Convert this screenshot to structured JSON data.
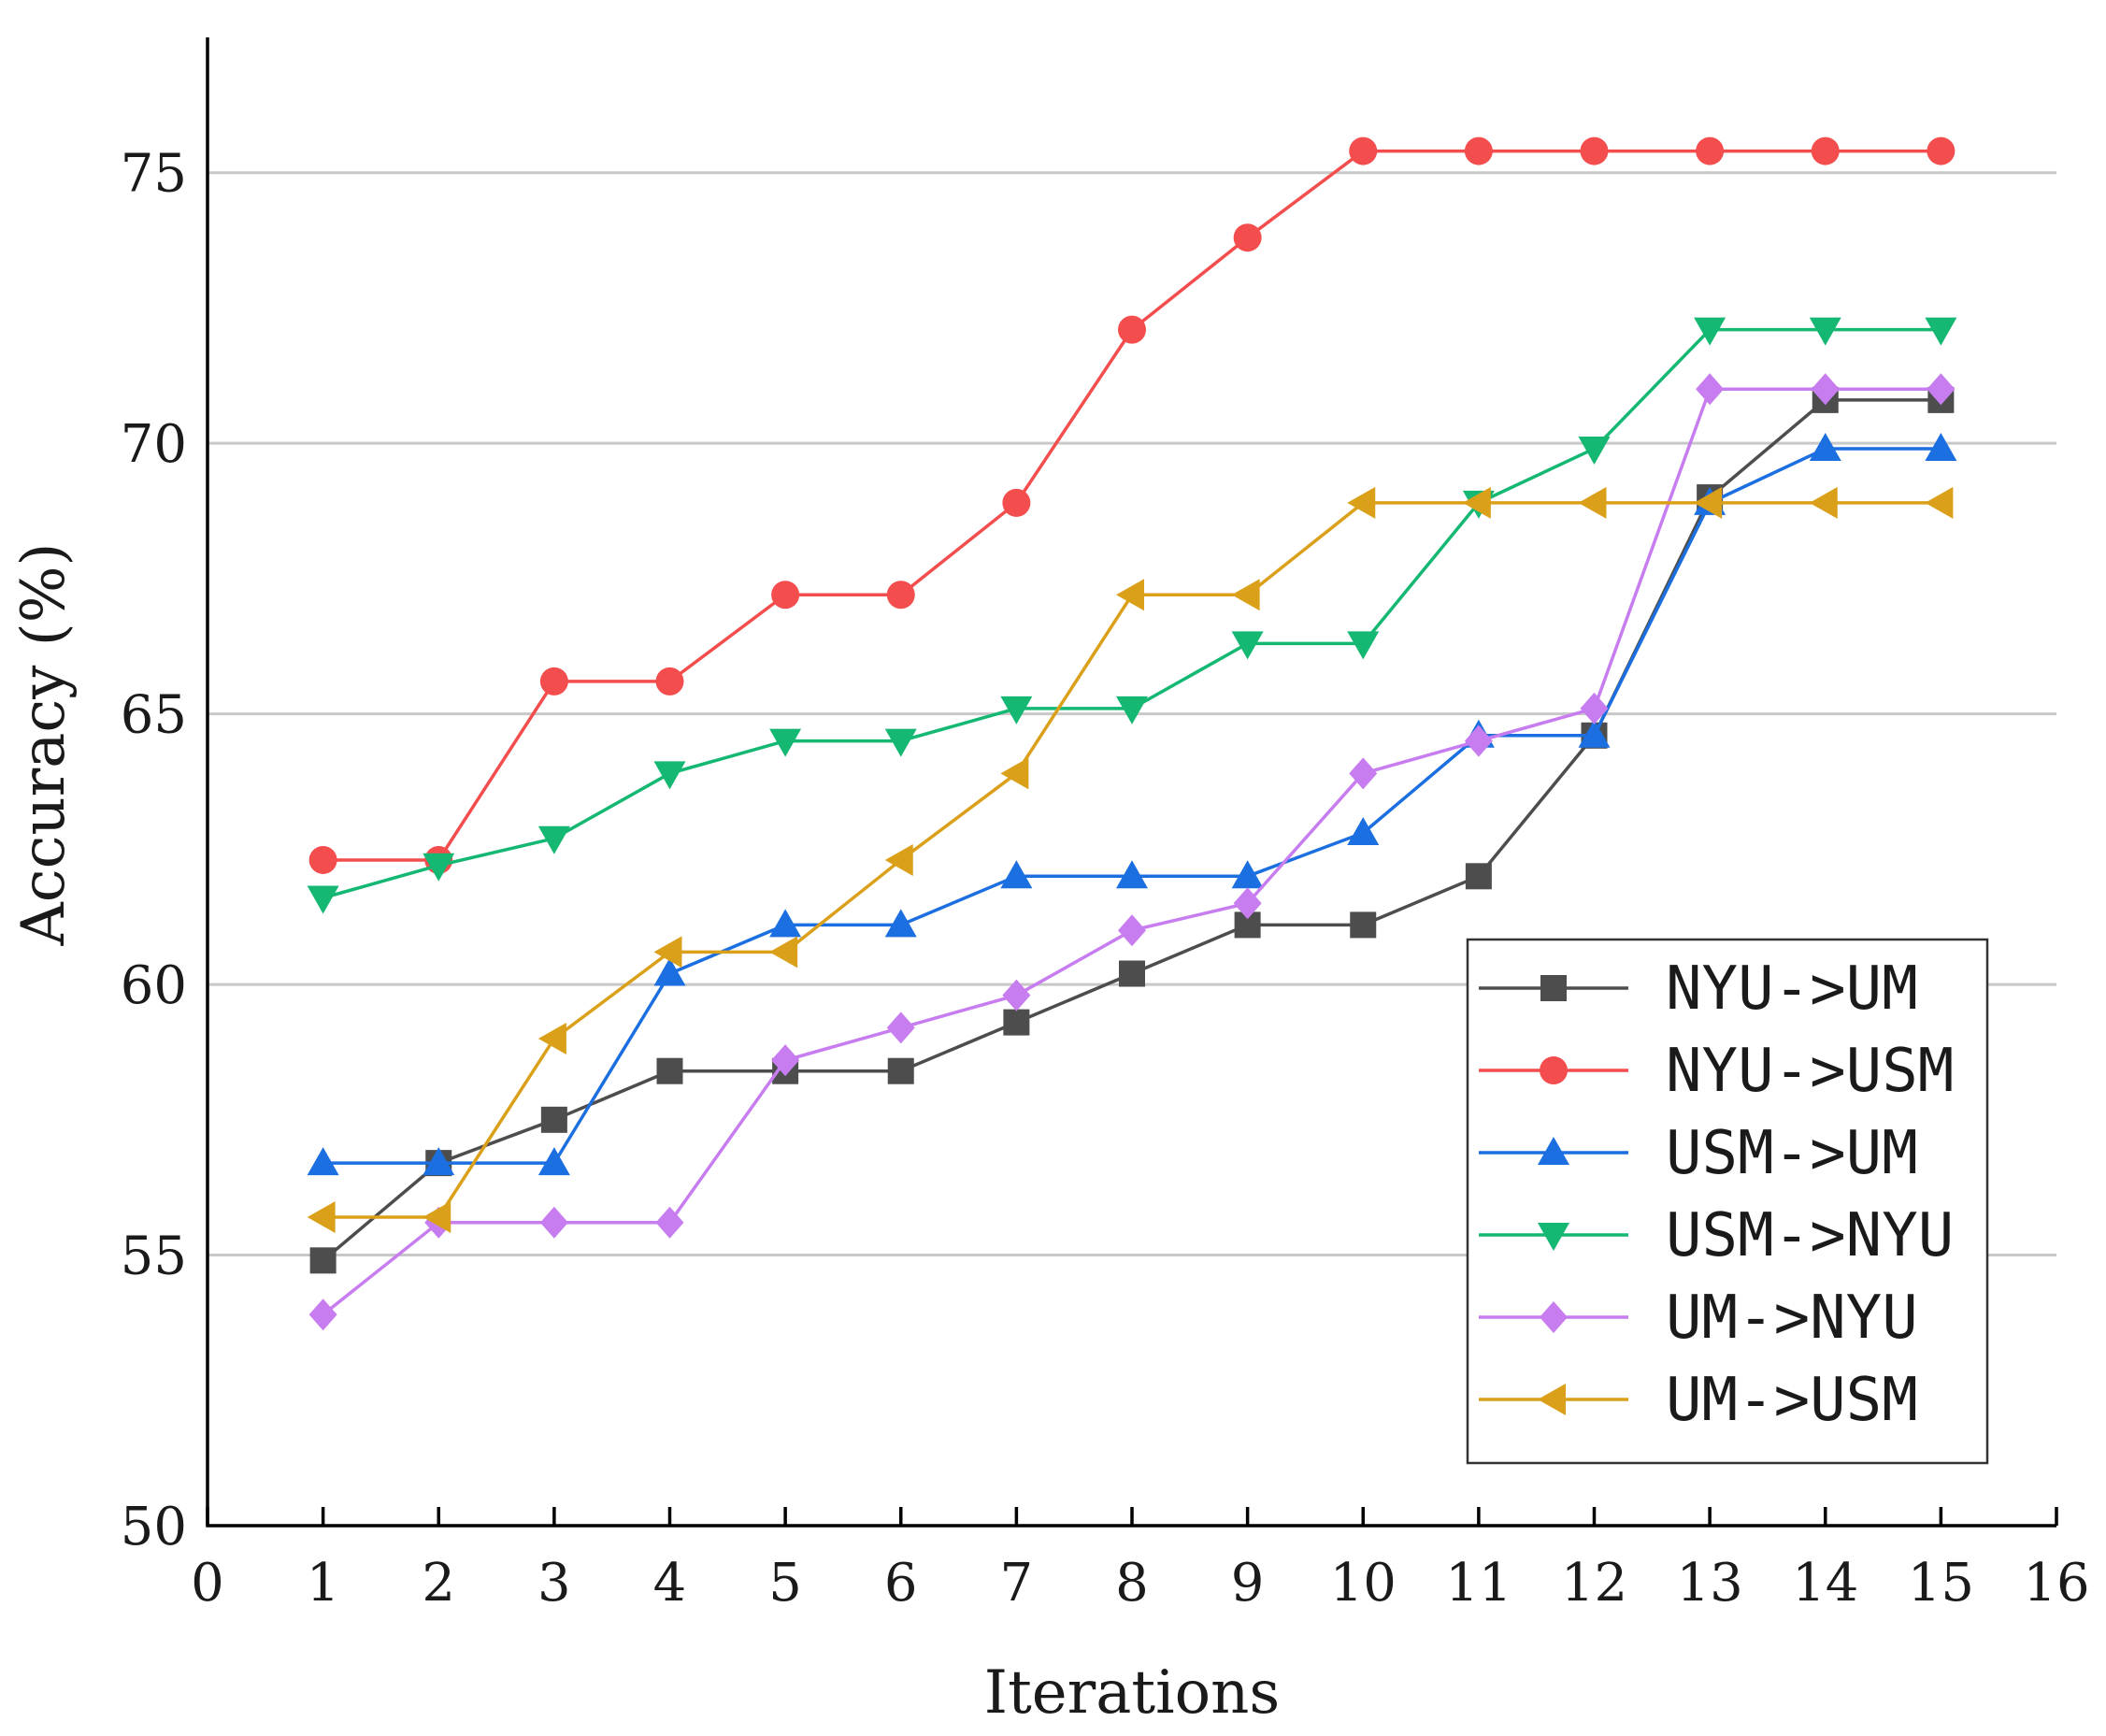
{
  "chart_data": {
    "type": "line",
    "title": "",
    "xlabel": "Iterations",
    "ylabel": "Accuracy (%)",
    "xlim": [
      0,
      16
    ],
    "ylim": [
      50,
      77.5
    ],
    "xticks": [
      "0",
      "1",
      "2",
      "3",
      "4",
      "5",
      "6",
      "7",
      "8",
      "9",
      "10",
      "11",
      "12",
      "13",
      "14",
      "15",
      "16"
    ],
    "yticks": [
      "50",
      "55",
      "60",
      "65",
      "70",
      "75"
    ],
    "grid": "horizontal",
    "legend_position": "bottom-right",
    "x": [
      1,
      2,
      3,
      4,
      5,
      6,
      7,
      8,
      9,
      10,
      11,
      12,
      13,
      14,
      15
    ],
    "series": [
      {
        "name": "NYU->UM",
        "color": "#4d4d4d",
        "marker": "square",
        "values": [
          54.9,
          56.7,
          57.5,
          58.4,
          58.4,
          58.4,
          59.3,
          60.2,
          61.1,
          61.1,
          62.0,
          64.6,
          69.0,
          70.8,
          70.8
        ]
      },
      {
        "name": "NYU->USM",
        "color": "#f44d4d",
        "marker": "circle",
        "values": [
          62.3,
          62.3,
          65.6,
          65.6,
          67.2,
          67.2,
          68.9,
          72.1,
          73.8,
          75.4,
          75.4,
          75.4,
          75.4,
          75.4,
          75.4
        ]
      },
      {
        "name": "USM->UM",
        "color": "#1b6fe0",
        "marker": "triangle-up",
        "values": [
          56.7,
          56.7,
          56.7,
          60.2,
          61.1,
          61.1,
          62.0,
          62.0,
          62.0,
          62.8,
          64.6,
          64.6,
          68.9,
          69.9,
          69.9
        ]
      },
      {
        "name": "USM->NYU",
        "color": "#14b873",
        "marker": "triangle-down",
        "values": [
          61.6,
          62.2,
          62.7,
          63.9,
          64.5,
          64.5,
          65.1,
          65.1,
          66.3,
          66.3,
          68.9,
          69.9,
          72.1,
          72.1,
          72.1
        ]
      },
      {
        "name": "UM->NYU",
        "color": "#c77df0",
        "marker": "diamond",
        "values": [
          53.9,
          55.6,
          55.6,
          55.6,
          58.6,
          59.2,
          59.8,
          61.0,
          61.5,
          63.9,
          64.5,
          65.1,
          71.0,
          71.0,
          71.0
        ]
      },
      {
        "name": "UM->USM",
        "color": "#dba01a",
        "marker": "triangle-left",
        "values": [
          55.7,
          55.7,
          59.0,
          60.6,
          60.6,
          62.3,
          63.9,
          67.2,
          67.2,
          68.9,
          68.9,
          68.9,
          68.9,
          68.9,
          68.9
        ]
      }
    ]
  }
}
